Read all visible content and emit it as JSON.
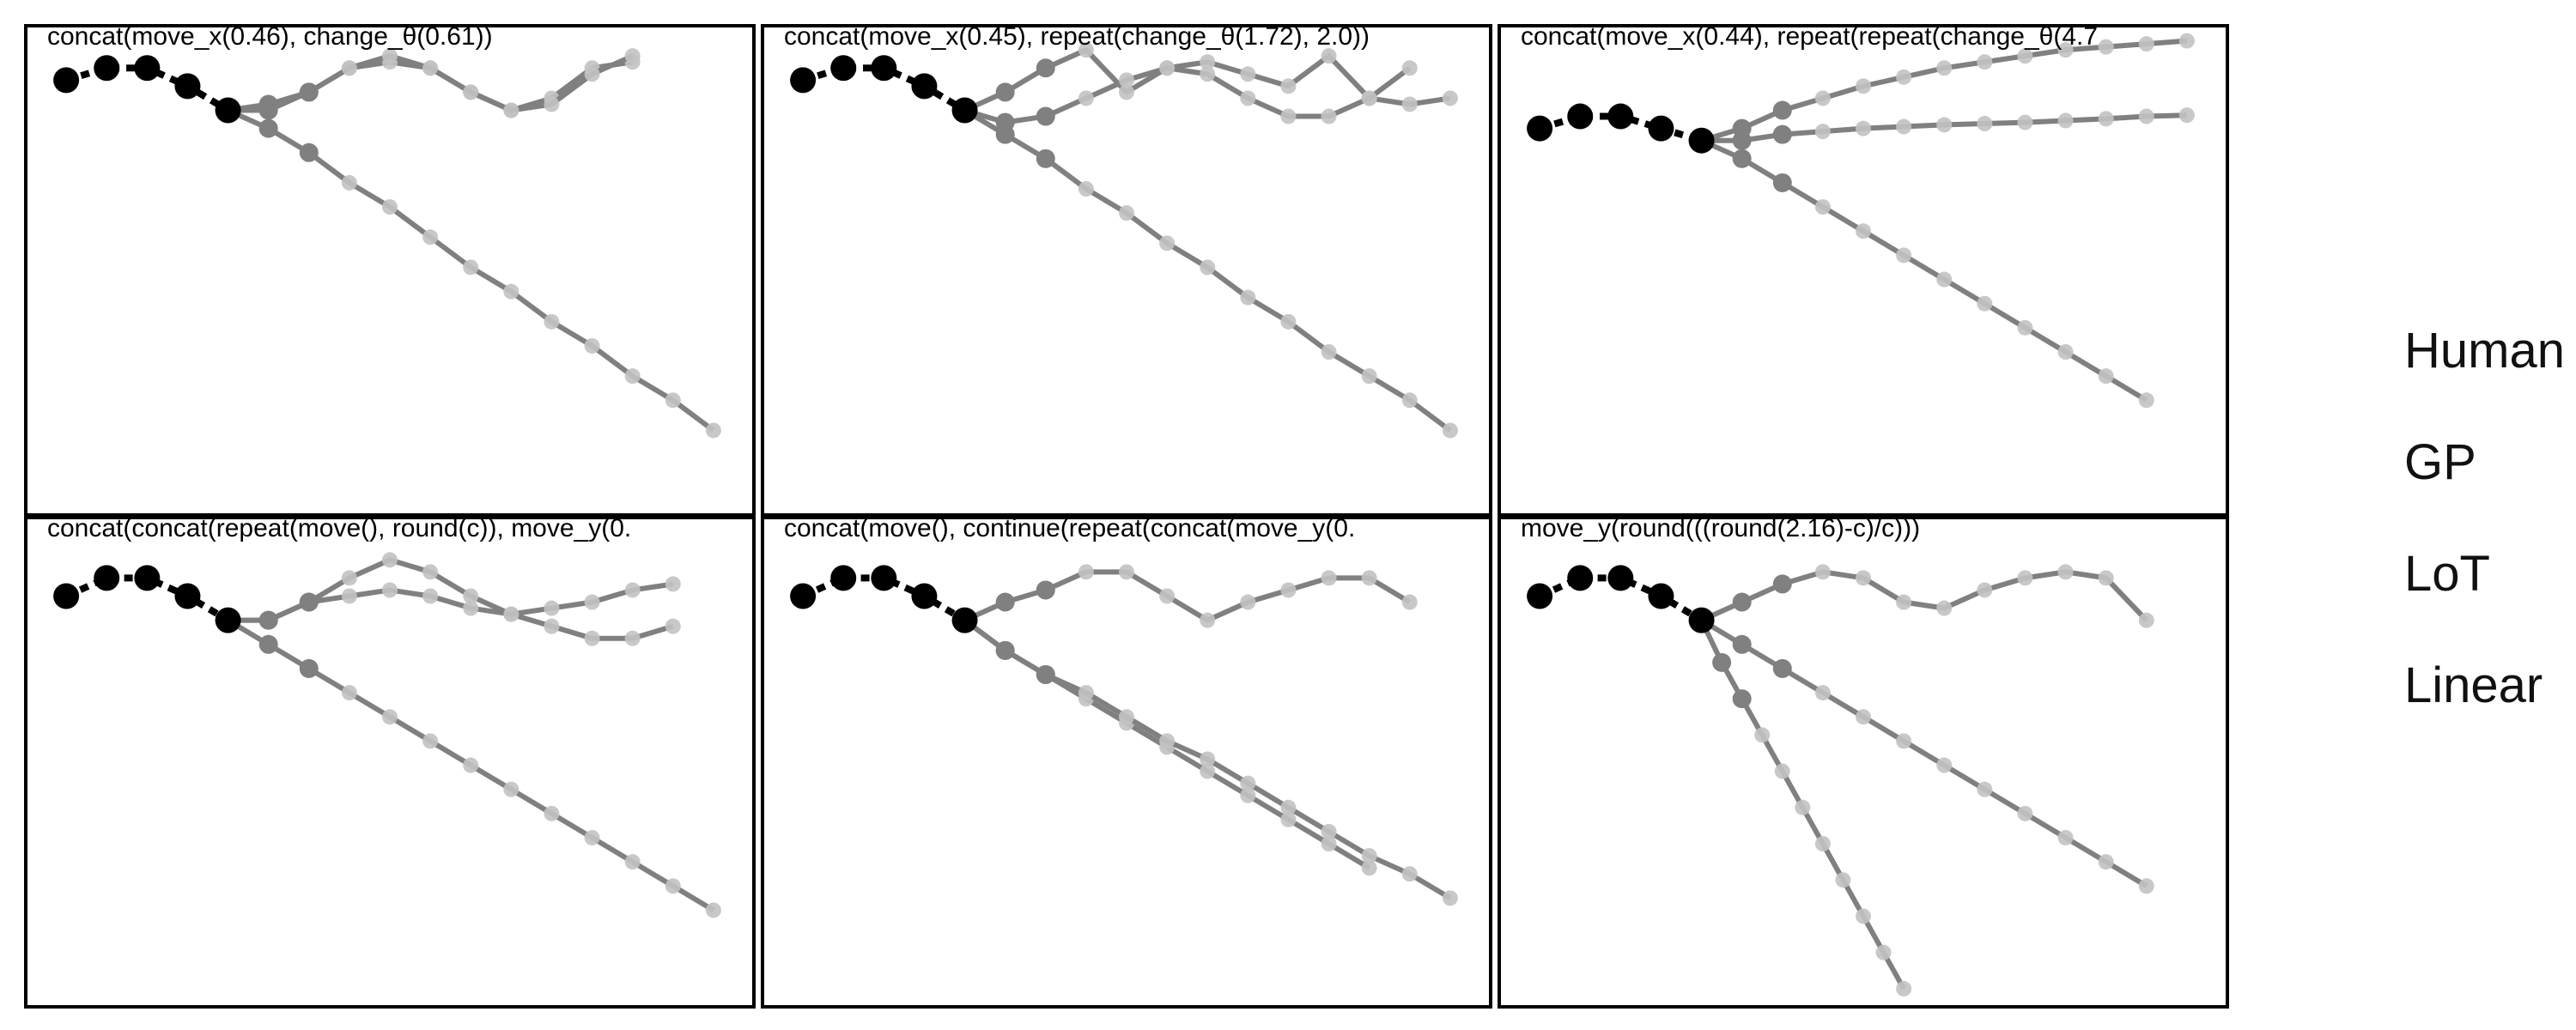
{
  "panels": [
    {
      "title": "concat(move_x(0.46), change_θ(0.61))",
      "context": [
        [
          -2.5,
          2.3
        ],
        [
          -2.0,
          2.5
        ],
        [
          -1.5,
          2.5
        ],
        [
          -1.0,
          2.2
        ],
        [
          -0.5,
          1.8
        ]
      ],
      "trajectories": [
        [
          [
            -0.5,
            1.8
          ],
          [
            0.0,
            1.9
          ],
          [
            0.5,
            2.1
          ],
          [
            1.0,
            2.5
          ],
          [
            1.5,
            2.6
          ],
          [
            2.0,
            2.5
          ],
          [
            2.5,
            2.1
          ],
          [
            3.0,
            1.8
          ],
          [
            3.5,
            2.0
          ],
          [
            4.0,
            2.5
          ],
          [
            4.5,
            2.6
          ]
        ],
        [
          [
            -0.5,
            1.8
          ],
          [
            0.0,
            1.8
          ],
          [
            0.5,
            2.1
          ],
          [
            1.0,
            2.5
          ],
          [
            1.5,
            2.7
          ],
          [
            2.0,
            2.5
          ],
          [
            2.5,
            2.1
          ],
          [
            3.0,
            1.8
          ],
          [
            3.5,
            1.9
          ],
          [
            4.0,
            2.4
          ],
          [
            4.5,
            2.7
          ]
        ],
        [
          [
            -0.5,
            1.8
          ],
          [
            0.0,
            1.5
          ],
          [
            0.5,
            1.1
          ],
          [
            1.0,
            0.6
          ],
          [
            1.5,
            0.2
          ],
          [
            2.0,
            -0.3
          ],
          [
            2.5,
            -0.8
          ],
          [
            3.0,
            -1.2
          ],
          [
            3.5,
            -1.7
          ],
          [
            4.0,
            -2.1
          ],
          [
            4.5,
            -2.6
          ],
          [
            5.0,
            -3.0
          ],
          [
            5.5,
            -3.5
          ]
        ]
      ]
    },
    {
      "title": "concat(move_x(0.45), repeat(change_θ(1.72), 2.0))",
      "context": [
        [
          -2.5,
          2.3
        ],
        [
          -2.0,
          2.5
        ],
        [
          -1.5,
          2.5
        ],
        [
          -1.0,
          2.2
        ],
        [
          -0.5,
          1.8
        ]
      ],
      "trajectories": [
        [
          [
            -0.5,
            1.8
          ],
          [
            0.0,
            2.1
          ],
          [
            0.5,
            2.5
          ],
          [
            1.0,
            2.8
          ],
          [
            1.5,
            2.1
          ],
          [
            2.0,
            2.5
          ],
          [
            2.5,
            2.6
          ],
          [
            3.0,
            2.4
          ],
          [
            3.5,
            2.2
          ],
          [
            4.0,
            2.7
          ],
          [
            4.5,
            2.0
          ],
          [
            5.0,
            1.9
          ],
          [
            5.5,
            2.0
          ]
        ],
        [
          [
            -0.5,
            1.8
          ],
          [
            0.0,
            1.6
          ],
          [
            0.5,
            1.7
          ],
          [
            1.0,
            2.0
          ],
          [
            1.5,
            2.3
          ],
          [
            2.0,
            2.5
          ],
          [
            2.5,
            2.4
          ],
          [
            3.0,
            2.0
          ],
          [
            3.5,
            1.7
          ],
          [
            4.0,
            1.7
          ],
          [
            4.5,
            2.0
          ],
          [
            5.0,
            2.5
          ]
        ],
        [
          [
            -0.5,
            1.8
          ],
          [
            0.0,
            1.4
          ],
          [
            0.5,
            1.0
          ],
          [
            1.0,
            0.5
          ],
          [
            1.5,
            0.1
          ],
          [
            2.0,
            -0.4
          ],
          [
            2.5,
            -0.8
          ],
          [
            3.0,
            -1.3
          ],
          [
            3.5,
            -1.7
          ],
          [
            4.0,
            -2.2
          ],
          [
            4.5,
            -2.6
          ],
          [
            5.0,
            -3.0
          ],
          [
            5.5,
            -3.5
          ]
        ]
      ]
    },
    {
      "title": "concat(move_x(0.44), repeat(repeat(change_θ(4.7",
      "context": [
        [
          -2.5,
          1.5
        ],
        [
          -2.0,
          1.7
        ],
        [
          -1.5,
          1.7
        ],
        [
          -1.0,
          1.5
        ],
        [
          -0.5,
          1.3
        ]
      ],
      "trajectories": [
        [
          [
            -0.5,
            1.3
          ],
          [
            0.0,
            1.5
          ],
          [
            0.5,
            1.8
          ],
          [
            1.0,
            2.0
          ],
          [
            1.5,
            2.2
          ],
          [
            2.0,
            2.35
          ],
          [
            2.5,
            2.5
          ],
          [
            3.0,
            2.6
          ],
          [
            3.5,
            2.7
          ],
          [
            4.0,
            2.8
          ],
          [
            4.5,
            2.85
          ],
          [
            5.0,
            2.9
          ],
          [
            5.5,
            2.95
          ]
        ],
        [
          [
            -0.5,
            1.3
          ],
          [
            0.0,
            1.3
          ],
          [
            0.5,
            1.4
          ],
          [
            1.0,
            1.45
          ],
          [
            1.5,
            1.5
          ],
          [
            2.0,
            1.53
          ],
          [
            2.5,
            1.56
          ],
          [
            3.0,
            1.58
          ],
          [
            3.5,
            1.6
          ],
          [
            4.0,
            1.63
          ],
          [
            4.5,
            1.66
          ],
          [
            5.0,
            1.7
          ],
          [
            5.5,
            1.72
          ]
        ],
        [
          [
            -0.5,
            1.3
          ],
          [
            0.0,
            1.0
          ],
          [
            0.5,
            0.6
          ],
          [
            1.0,
            0.2
          ],
          [
            1.5,
            -0.2
          ],
          [
            2.0,
            -0.6
          ],
          [
            2.5,
            -1.0
          ],
          [
            3.0,
            -1.4
          ],
          [
            3.5,
            -1.8
          ],
          [
            4.0,
            -2.2
          ],
          [
            4.5,
            -2.6
          ],
          [
            5.0,
            -3.0
          ]
        ]
      ]
    },
    {
      "title": "concat(concat(repeat(move(), round(c)), move_y(0.",
      "context": [
        [
          -2.5,
          1.9
        ],
        [
          -2.0,
          2.2
        ],
        [
          -1.5,
          2.2
        ],
        [
          -1.0,
          1.9
        ],
        [
          -0.5,
          1.5
        ]
      ],
      "trajectories": [
        [
          [
            -0.5,
            1.5
          ],
          [
            0.0,
            1.5
          ],
          [
            0.5,
            1.8
          ],
          [
            1.0,
            2.2
          ],
          [
            1.5,
            2.5
          ],
          [
            2.0,
            2.3
          ],
          [
            2.5,
            1.9
          ],
          [
            3.0,
            1.6
          ],
          [
            3.5,
            1.4
          ],
          [
            4.0,
            1.2
          ],
          [
            4.5,
            1.2
          ],
          [
            5.0,
            1.4
          ]
        ],
        [
          [
            -0.5,
            1.5
          ],
          [
            0.0,
            1.5
          ],
          [
            0.5,
            1.8
          ],
          [
            1.0,
            1.9
          ],
          [
            1.5,
            2.0
          ],
          [
            2.0,
            1.9
          ],
          [
            2.5,
            1.7
          ],
          [
            3.0,
            1.6
          ],
          [
            3.5,
            1.7
          ],
          [
            4.0,
            1.8
          ],
          [
            4.5,
            2.0
          ],
          [
            5.0,
            2.1
          ]
        ],
        [
          [
            -0.5,
            1.5
          ],
          [
            0.0,
            1.1
          ],
          [
            0.5,
            0.7
          ],
          [
            1.0,
            0.3
          ],
          [
            1.5,
            -0.1
          ],
          [
            2.0,
            -0.5
          ],
          [
            2.5,
            -0.9
          ],
          [
            3.0,
            -1.3
          ],
          [
            3.5,
            -1.7
          ],
          [
            4.0,
            -2.1
          ],
          [
            4.5,
            -2.5
          ],
          [
            5.0,
            -2.9
          ],
          [
            5.5,
            -3.3
          ]
        ]
      ]
    },
    {
      "title": "concat(move(), continue(repeat(concat(move_y(0.",
      "context": [
        [
          -2.5,
          1.9
        ],
        [
          -2.0,
          2.2
        ],
        [
          -1.5,
          2.2
        ],
        [
          -1.0,
          1.9
        ],
        [
          -0.5,
          1.5
        ]
      ],
      "trajectories": [
        [
          [
            -0.5,
            1.5
          ],
          [
            0.0,
            1.8
          ],
          [
            0.5,
            2.0
          ],
          [
            1.0,
            2.3
          ],
          [
            1.5,
            2.3
          ],
          [
            2.0,
            1.9
          ],
          [
            2.5,
            1.5
          ],
          [
            3.0,
            1.8
          ],
          [
            3.5,
            2.0
          ],
          [
            4.0,
            2.2
          ],
          [
            4.5,
            2.2
          ],
          [
            5.0,
            1.8
          ]
        ],
        [
          [
            -0.5,
            1.5
          ],
          [
            0.0,
            1.0
          ],
          [
            0.5,
            0.6
          ],
          [
            1.0,
            0.2
          ],
          [
            1.5,
            -0.2
          ],
          [
            2.0,
            -0.6
          ],
          [
            2.5,
            -1.0
          ],
          [
            3.0,
            -1.4
          ],
          [
            3.5,
            -1.8
          ],
          [
            4.0,
            -2.2
          ],
          [
            4.5,
            -2.6
          ]
        ],
        [
          [
            -0.5,
            1.5
          ],
          [
            0.0,
            1.0
          ],
          [
            0.5,
            0.6
          ],
          [
            1.0,
            0.3
          ],
          [
            1.5,
            -0.1
          ],
          [
            2.0,
            -0.5
          ],
          [
            2.5,
            -0.8
          ],
          [
            3.0,
            -1.2
          ],
          [
            3.5,
            -1.6
          ],
          [
            4.0,
            -2.0
          ],
          [
            4.5,
            -2.4
          ],
          [
            5.0,
            -2.7
          ],
          [
            5.5,
            -3.1
          ]
        ]
      ]
    },
    {
      "title": "move_y(round(((round(2.16)-c)/c)))",
      "context": [
        [
          -2.5,
          1.9
        ],
        [
          -2.0,
          2.2
        ],
        [
          -1.5,
          2.2
        ],
        [
          -1.0,
          1.9
        ],
        [
          -0.5,
          1.5
        ]
      ],
      "trajectories": [
        [
          [
            -0.5,
            1.5
          ],
          [
            0.0,
            1.8
          ],
          [
            0.5,
            2.1
          ],
          [
            1.0,
            2.3
          ],
          [
            1.5,
            2.2
          ],
          [
            2.0,
            1.8
          ],
          [
            2.5,
            1.7
          ],
          [
            3.0,
            2.0
          ],
          [
            3.5,
            2.2
          ],
          [
            4.0,
            2.3
          ],
          [
            4.5,
            2.2
          ],
          [
            5.0,
            1.5
          ]
        ],
        [
          [
            -0.5,
            1.5
          ],
          [
            0.0,
            1.1
          ],
          [
            0.5,
            0.7
          ],
          [
            1.0,
            0.3
          ],
          [
            1.5,
            -0.1
          ],
          [
            2.0,
            -0.5
          ],
          [
            2.5,
            -0.9
          ],
          [
            3.0,
            -1.3
          ],
          [
            3.5,
            -1.7
          ],
          [
            4.0,
            -2.1
          ],
          [
            4.5,
            -2.5
          ],
          [
            5.0,
            -2.9
          ]
        ],
        [
          [
            -0.5,
            1.5
          ],
          [
            -0.25,
            0.8
          ],
          [
            0.0,
            0.2
          ],
          [
            0.25,
            -0.4
          ],
          [
            0.5,
            -1.0
          ],
          [
            0.75,
            -1.6
          ],
          [
            1.0,
            -2.2
          ],
          [
            1.25,
            -2.8
          ],
          [
            1.5,
            -3.4
          ],
          [
            1.75,
            -4.0
          ],
          [
            2.0,
            -4.6
          ]
        ]
      ]
    }
  ],
  "legend": {
    "labels": [
      "Human",
      "GP",
      "LoT",
      "Linear"
    ]
  },
  "colors": {
    "context": "#000000",
    "trajectory": "#808080",
    "trajectory_light": "#c2c2c2",
    "frame": "#000000"
  }
}
